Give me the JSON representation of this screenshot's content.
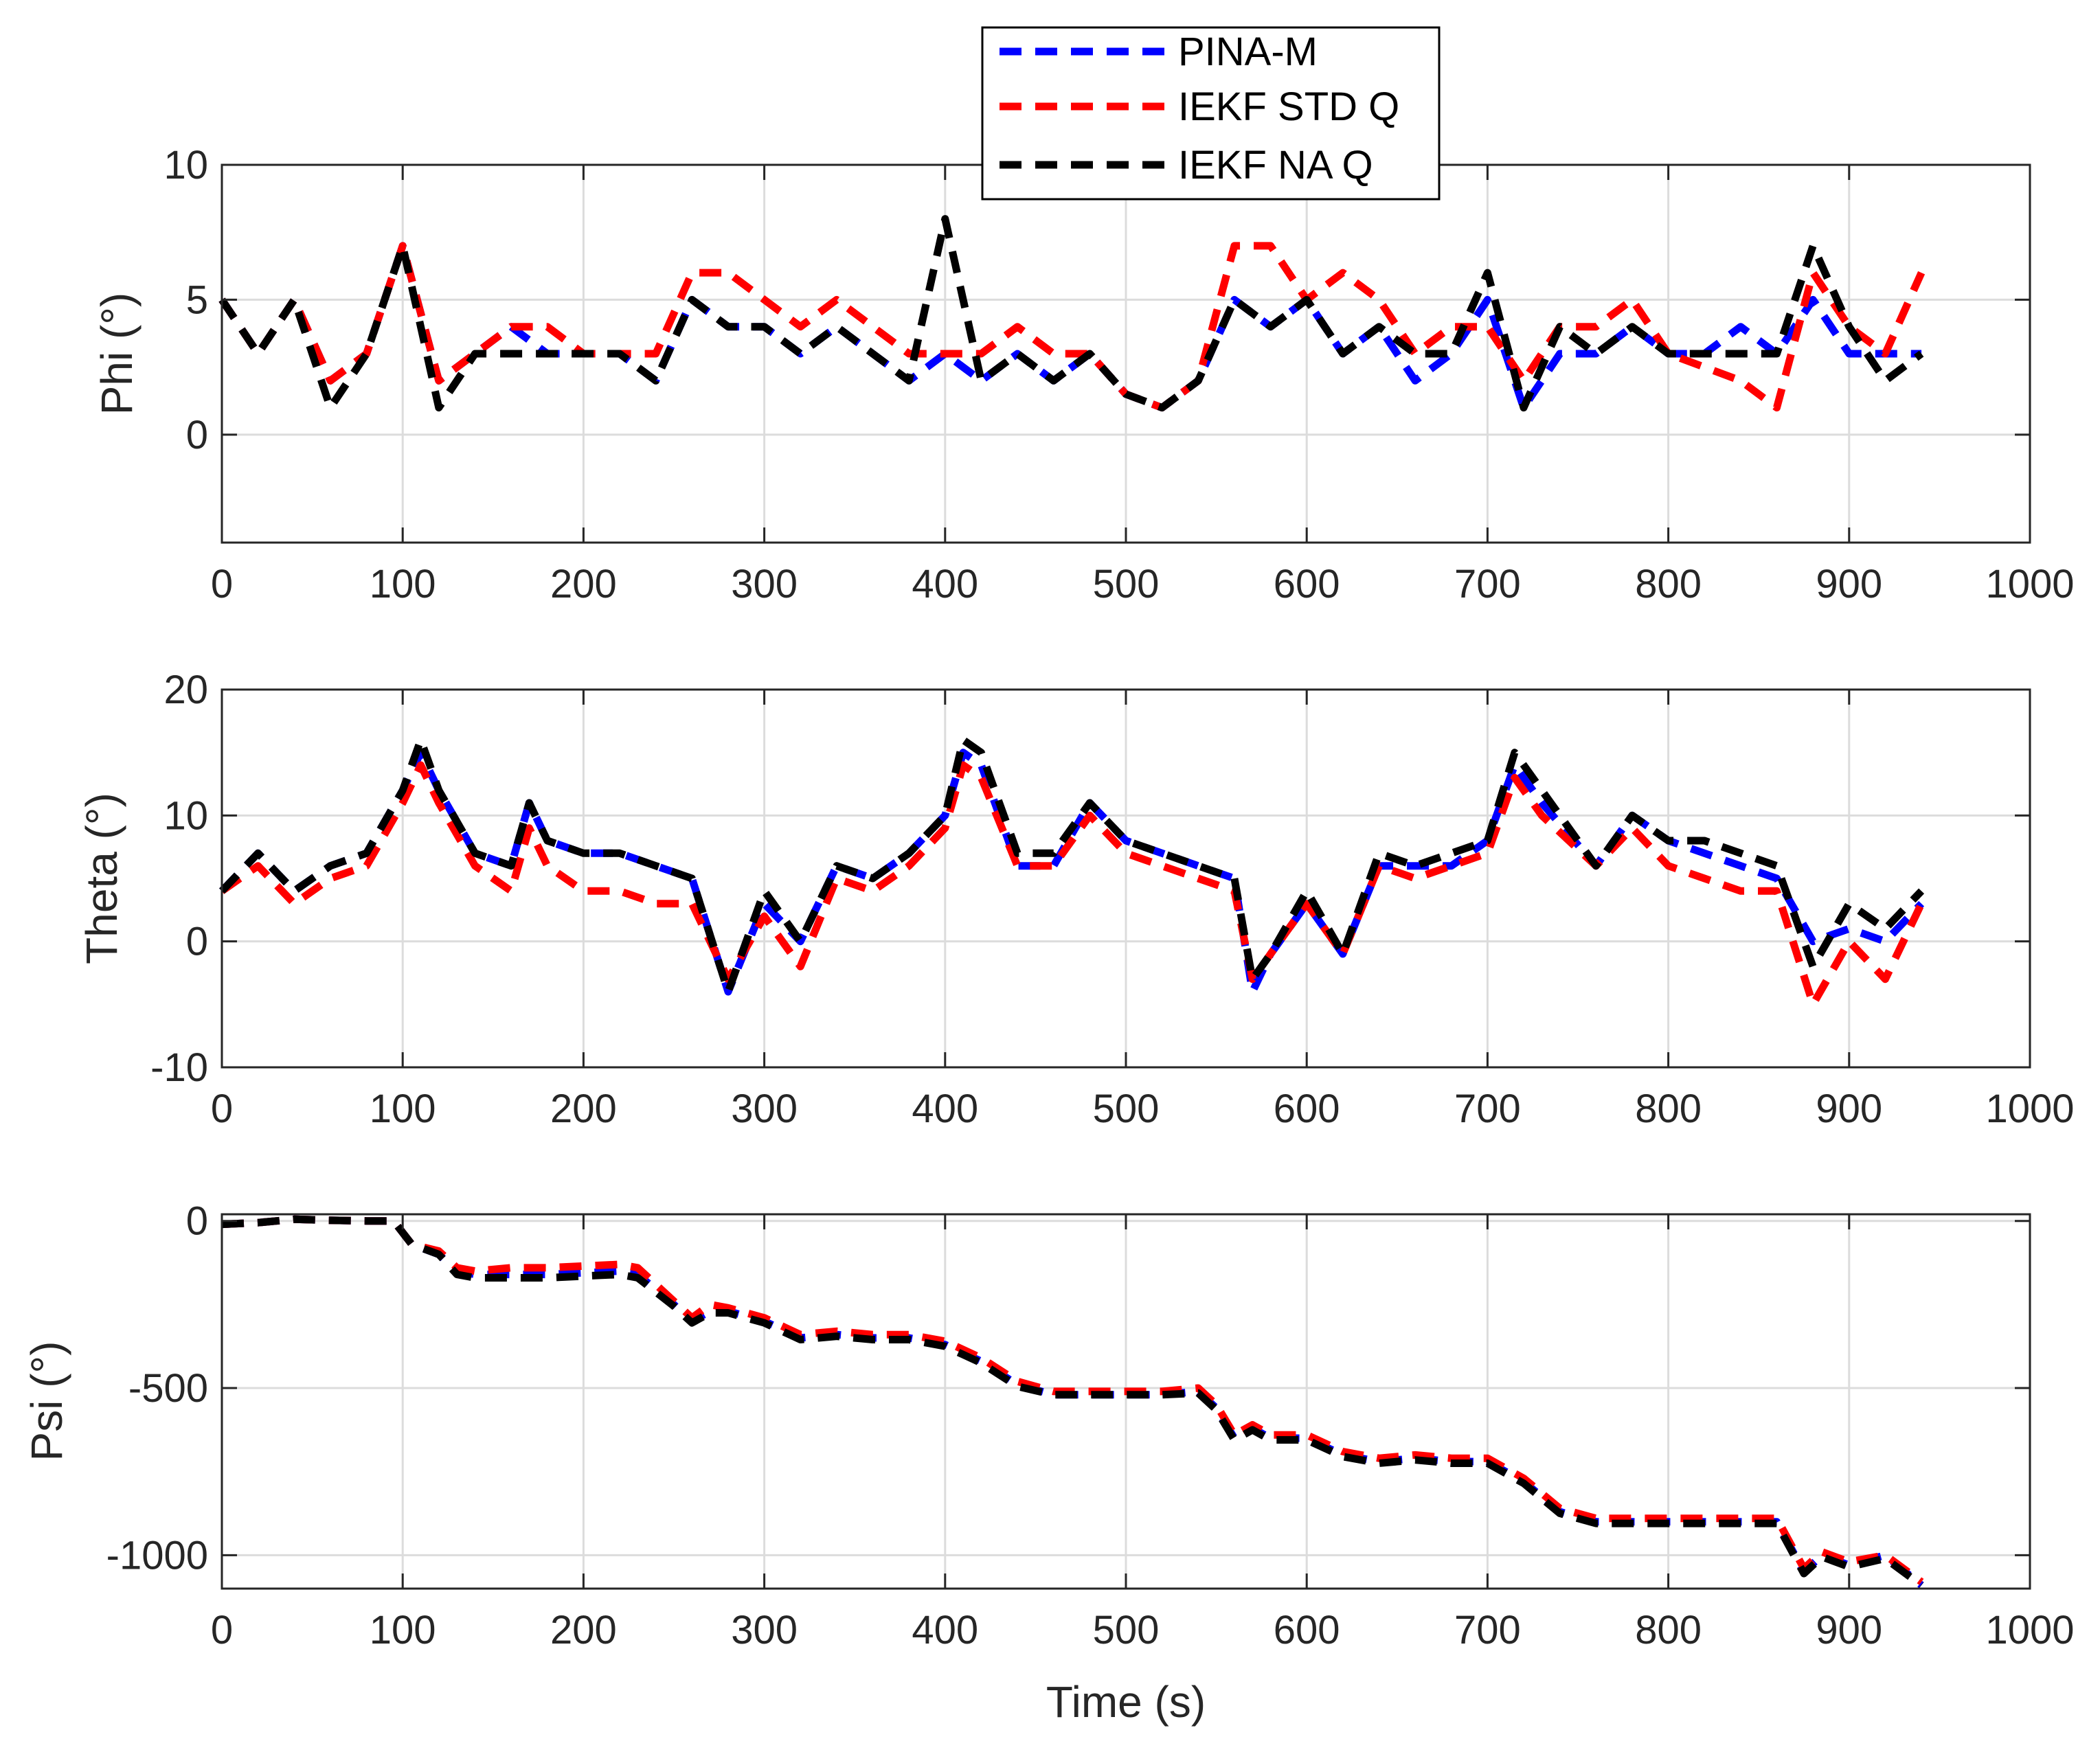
{
  "legend": [
    "PINA-M",
    "IEKF STD Q",
    "IEKF NA Q"
  ],
  "colors": {
    "PINA-M": "#0000ff",
    "IEKF STD Q": "#ff0000",
    "IEKF NA Q": "#000000"
  },
  "chart_data": [
    {
      "type": "line",
      "ylabel": "Phi (°)",
      "xlabel": "",
      "xlim": [
        0,
        1000
      ],
      "ylim": [
        -4,
        10
      ],
      "xticks": [
        0,
        100,
        200,
        300,
        400,
        500,
        600,
        700,
        800,
        900,
        1000
      ],
      "yticks": [
        0,
        5,
        10
      ],
      "grid": true,
      "x": [
        0,
        20,
        40,
        60,
        80,
        100,
        120,
        140,
        160,
        180,
        200,
        220,
        240,
        260,
        280,
        300,
        320,
        340,
        360,
        380,
        400,
        420,
        440,
        460,
        480,
        500,
        520,
        540,
        560,
        580,
        600,
        620,
        640,
        660,
        680,
        700,
        720,
        740,
        760,
        780,
        800,
        820,
        840,
        860,
        880,
        900,
        920,
        940
      ],
      "series": [
        {
          "name": "PINA-M",
          "values": [
            5,
            3,
            5,
            2,
            3,
            7,
            2,
            3,
            4,
            3,
            3,
            3,
            2,
            5,
            4,
            4,
            3,
            4,
            3,
            2,
            3,
            2,
            3,
            2,
            3,
            1.5,
            1,
            2,
            5,
            4,
            5,
            3,
            4,
            2,
            3,
            5,
            1,
            3,
            3,
            4,
            3,
            3,
            4,
            3,
            5,
            3,
            3,
            3
          ]
        },
        {
          "name": "IEKF STD Q",
          "values": [
            5,
            3,
            5,
            2,
            3,
            7,
            2,
            3,
            4,
            4,
            3,
            3,
            3,
            6,
            6,
            5,
            4,
            5,
            4,
            3,
            3,
            3,
            4,
            3,
            3,
            1.5,
            1,
            2,
            7,
            7,
            5,
            6,
            5,
            3,
            4,
            4,
            2,
            4,
            4,
            5,
            3,
            2.5,
            2,
            1,
            6,
            4,
            3,
            6
          ]
        },
        {
          "name": "IEKF NA Q",
          "values": [
            5,
            3,
            5,
            1,
            3,
            7,
            1,
            3,
            3,
            3,
            3,
            3,
            2,
            5,
            4,
            4,
            3,
            4,
            3,
            2,
            8,
            2,
            3,
            2,
            3,
            1.5,
            1,
            2,
            5,
            4,
            5,
            3,
            4,
            3,
            3,
            6,
            1,
            4,
            3,
            4,
            3,
            3,
            3,
            3,
            7,
            4,
            2,
            3
          ]
        }
      ]
    },
    {
      "type": "line",
      "ylabel": "Theta (°)",
      "xlabel": "",
      "xlim": [
        0,
        1000
      ],
      "ylim": [
        -10,
        20
      ],
      "xticks": [
        0,
        100,
        200,
        300,
        400,
        500,
        600,
        700,
        800,
        900,
        1000
      ],
      "yticks": [
        -10,
        0,
        10,
        20
      ],
      "grid": true,
      "x": [
        0,
        20,
        40,
        60,
        80,
        100,
        110,
        120,
        140,
        160,
        170,
        180,
        200,
        220,
        240,
        260,
        280,
        300,
        320,
        340,
        360,
        380,
        400,
        410,
        420,
        440,
        460,
        480,
        500,
        520,
        540,
        560,
        570,
        580,
        600,
        620,
        640,
        660,
        680,
        700,
        715,
        730,
        760,
        780,
        800,
        820,
        840,
        860,
        880,
        900,
        920,
        940
      ],
      "series": [
        {
          "name": "PINA-M",
          "values": [
            4,
            7,
            4,
            6,
            7,
            12,
            15,
            12,
            7,
            6,
            11,
            8,
            7,
            7,
            6,
            5,
            -4,
            3,
            0,
            6,
            5,
            7,
            10,
            15,
            14,
            6,
            6,
            11,
            8,
            7,
            6,
            5,
            -4,
            -1,
            3,
            -1,
            6,
            6,
            6,
            8,
            14,
            11,
            6,
            10,
            8,
            7,
            6,
            5,
            0,
            1,
            0,
            3
          ]
        },
        {
          "name": "IEKF STD Q",
          "values": [
            4,
            6,
            3,
            5,
            6,
            11,
            14,
            11,
            6,
            4,
            9,
            6,
            4,
            4,
            3,
            3,
            -3,
            2,
            -2,
            5,
            4,
            6,
            9,
            14,
            13,
            6,
            6,
            10,
            7,
            6,
            5,
            4,
            -3,
            -1,
            3,
            -1,
            6,
            5,
            6,
            7,
            13,
            10,
            6,
            9,
            6,
            5,
            4,
            4,
            -5,
            0,
            -3,
            3
          ]
        },
        {
          "name": "IEKF NA Q",
          "values": [
            4,
            7,
            4,
            6,
            7,
            12,
            16,
            12,
            7,
            6,
            11,
            8,
            7,
            7,
            6,
            5,
            -4,
            4,
            0,
            6,
            5,
            7,
            10,
            16,
            15,
            7,
            7,
            11,
            8,
            7,
            6,
            5,
            -3,
            -1,
            4,
            -1,
            7,
            6,
            7,
            8,
            15,
            12,
            6,
            10,
            8,
            8,
            7,
            6,
            -2,
            3,
            1,
            4
          ]
        }
      ]
    },
    {
      "type": "line",
      "ylabel": "Psi (°)",
      "xlabel": "Time (s)",
      "xlim": [
        0,
        1000
      ],
      "ylim": [
        -1100,
        20
      ],
      "xticks": [
        0,
        100,
        200,
        300,
        400,
        500,
        600,
        700,
        800,
        900,
        1000
      ],
      "yticks": [
        -1000,
        -500,
        0
      ],
      "grid": true,
      "x": [
        0,
        20,
        40,
        60,
        80,
        95,
        105,
        120,
        130,
        140,
        160,
        180,
        200,
        220,
        230,
        250,
        260,
        270,
        280,
        300,
        320,
        340,
        360,
        380,
        400,
        420,
        440,
        460,
        480,
        500,
        520,
        540,
        550,
        560,
        570,
        580,
        600,
        620,
        640,
        660,
        680,
        700,
        720,
        740,
        760,
        780,
        800,
        820,
        840,
        860,
        875,
        885,
        900,
        920,
        940
      ],
      "series": [
        {
          "name": "PINA-M",
          "values": [
            -10,
            -5,
            5,
            2,
            0,
            0,
            -70,
            -100,
            -150,
            -160,
            -160,
            -160,
            -155,
            -150,
            -160,
            -250,
            -300,
            -270,
            -270,
            -300,
            -350,
            -340,
            -350,
            -350,
            -370,
            -420,
            -490,
            -520,
            -520,
            -520,
            -520,
            -510,
            -560,
            -650,
            -620,
            -650,
            -650,
            -700,
            -720,
            -710,
            -720,
            -720,
            -780,
            -870,
            -900,
            -900,
            -900,
            -900,
            -900,
            -900,
            -1050,
            -1000,
            -1030,
            -1000,
            -1090
          ]
        },
        {
          "name": "IEKF STD Q",
          "values": [
            -10,
            -5,
            5,
            2,
            0,
            0,
            -70,
            -90,
            -140,
            -150,
            -140,
            -140,
            -135,
            -130,
            -140,
            -240,
            -290,
            -250,
            -260,
            -290,
            -340,
            -330,
            -340,
            -340,
            -360,
            -410,
            -480,
            -510,
            -510,
            -510,
            -510,
            -500,
            -550,
            -640,
            -610,
            -640,
            -640,
            -690,
            -710,
            -700,
            -710,
            -710,
            -770,
            -860,
            -890,
            -890,
            -890,
            -890,
            -890,
            -890,
            -1040,
            -990,
            -1020,
            -1000,
            -1080
          ]
        },
        {
          "name": "IEKF NA Q",
          "values": [
            -10,
            -5,
            5,
            2,
            0,
            0,
            -70,
            -100,
            -160,
            -170,
            -170,
            -170,
            -165,
            -160,
            -170,
            -255,
            -305,
            -275,
            -275,
            -305,
            -355,
            -345,
            -355,
            -355,
            -375,
            -425,
            -495,
            -520,
            -520,
            -520,
            -520,
            -515,
            -565,
            -655,
            -625,
            -655,
            -655,
            -705,
            -725,
            -715,
            -725,
            -725,
            -785,
            -875,
            -905,
            -905,
            -905,
            -905,
            -905,
            -905,
            -1055,
            -1005,
            -1035,
            -1010,
            -1090
          ]
        }
      ]
    }
  ]
}
